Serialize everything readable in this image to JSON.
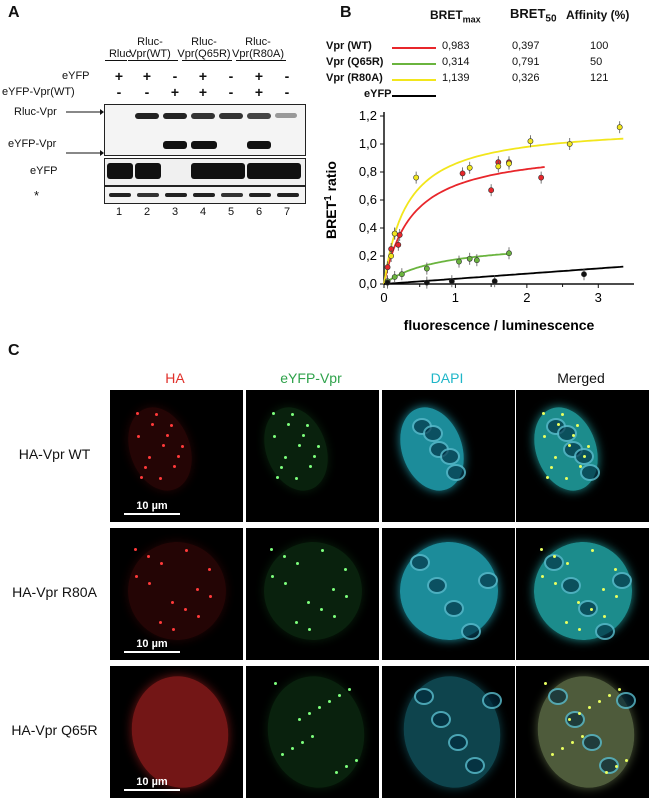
{
  "panelA": {
    "letter": "A",
    "columns": [
      "Rluc",
      "Rluc-\nVpr(WT)",
      "Rluc-\nVpr(Q65R)",
      "Rluc-\nVpr(R80A)"
    ],
    "rows": [
      {
        "label": "eYFP",
        "signs": [
          "+",
          "+",
          "-",
          "+",
          "-",
          "+",
          "-"
        ]
      },
      {
        "label": "eYFP-Vpr(WT)",
        "signs": [
          "-",
          "-",
          "+",
          "+",
          "-",
          "+",
          "-"
        ]
      }
    ],
    "blot_labels": [
      "Rluc-Vpr",
      "eYFP-Vpr",
      "eYFP",
      "*"
    ],
    "lanes": [
      "1",
      "2",
      "3",
      "4",
      "5",
      "6",
      "7"
    ]
  },
  "panelB": {
    "letter": "B",
    "table_headers": {
      "bmax_main": "BRET",
      "bmax_sub": "max",
      "b50_main": "BRET",
      "b50_sub": "50",
      "affinity": "Affinity (%)"
    },
    "table_rows": [
      {
        "name": "Vpr (WT)",
        "color": "#e8262b",
        "bmax": "0,983",
        "b50": "0,397",
        "aff": "100"
      },
      {
        "name": "Vpr (Q65R)",
        "color": "#6ab43e",
        "bmax": "0,314",
        "b50": "0,791",
        "aff": "50"
      },
      {
        "name": "Vpr (R80A)",
        "color": "#f2e61c",
        "bmax": "1,139",
        "b50": "0,326",
        "aff": "121"
      },
      {
        "name": "eYFP",
        "color": "#000000",
        "bmax": "",
        "b50": "",
        "aff": ""
      }
    ],
    "ylabel_main": "BRET",
    "ylabel_sup": "1",
    "ylabel_rest": " ratio",
    "xlabel": "fluorescence / luminescence"
  },
  "chart_data": {
    "type": "scatter",
    "xlabel": "fluorescence / luminescence",
    "ylabel": "BRET1 ratio",
    "xlim": [
      0,
      3.5
    ],
    "ylim": [
      0,
      1.2
    ],
    "xticks": [
      "0",
      "1",
      "2",
      "3"
    ],
    "yticks": [
      "0,0",
      "0,2",
      "0,4",
      "0,6",
      "0,8",
      "1,0",
      "1,2"
    ],
    "series": [
      {
        "name": "Vpr (WT)",
        "color": "#e8262b",
        "bmax": 0.983,
        "b50": 0.397,
        "fit_xmax": 2.25,
        "points": [
          [
            0.05,
            0.12
          ],
          [
            0.1,
            0.25
          ],
          [
            0.15,
            0.36
          ],
          [
            0.2,
            0.28
          ],
          [
            0.22,
            0.35
          ],
          [
            1.1,
            0.79
          ],
          [
            1.5,
            0.67
          ],
          [
            1.6,
            0.87
          ],
          [
            1.75,
            0.87
          ],
          [
            2.2,
            0.76
          ]
        ]
      },
      {
        "name": "Vpr (Q65R)",
        "color": "#6ab43e",
        "bmax": 0.314,
        "b50": 0.791,
        "fit_xmax": 1.75,
        "points": [
          [
            0.05,
            0.02
          ],
          [
            0.15,
            0.05
          ],
          [
            0.25,
            0.07
          ],
          [
            0.6,
            0.11
          ],
          [
            1.05,
            0.16
          ],
          [
            1.2,
            0.18
          ],
          [
            1.3,
            0.17
          ],
          [
            1.75,
            0.22
          ]
        ]
      },
      {
        "name": "Vpr (R80A)",
        "color": "#f2e61c",
        "bmax": 1.139,
        "b50": 0.326,
        "fit_xmax": 3.35,
        "points": [
          [
            0.1,
            0.2
          ],
          [
            0.15,
            0.36
          ],
          [
            0.45,
            0.76
          ],
          [
            1.2,
            0.83
          ],
          [
            1.6,
            0.84
          ],
          [
            1.75,
            0.86
          ],
          [
            2.05,
            1.02
          ],
          [
            2.6,
            1.0
          ],
          [
            3.3,
            1.12
          ]
        ]
      },
      {
        "name": "eYFP",
        "color": "#000000",
        "slope": 0.037,
        "fit_xmax": 3.35,
        "points": [
          [
            0.05,
            0.01
          ],
          [
            0.6,
            0.01
          ],
          [
            0.95,
            0.02
          ],
          [
            1.55,
            0.02
          ],
          [
            2.8,
            0.07
          ]
        ]
      }
    ]
  },
  "panelC": {
    "letter": "C",
    "columns": [
      {
        "label": "HA",
        "color": "#e0302a"
      },
      {
        "label": "eYFP-Vpr",
        "color": "#2ea24a"
      },
      {
        "label": "DAPI",
        "color": "#1fb6c8"
      },
      {
        "label": "Merged",
        "color": "#111111"
      }
    ],
    "rows": [
      "HA-Vpr WT",
      "HA-Vpr R80A",
      "HA-Vpr Q65R"
    ],
    "scale_bar": "10 µm"
  }
}
